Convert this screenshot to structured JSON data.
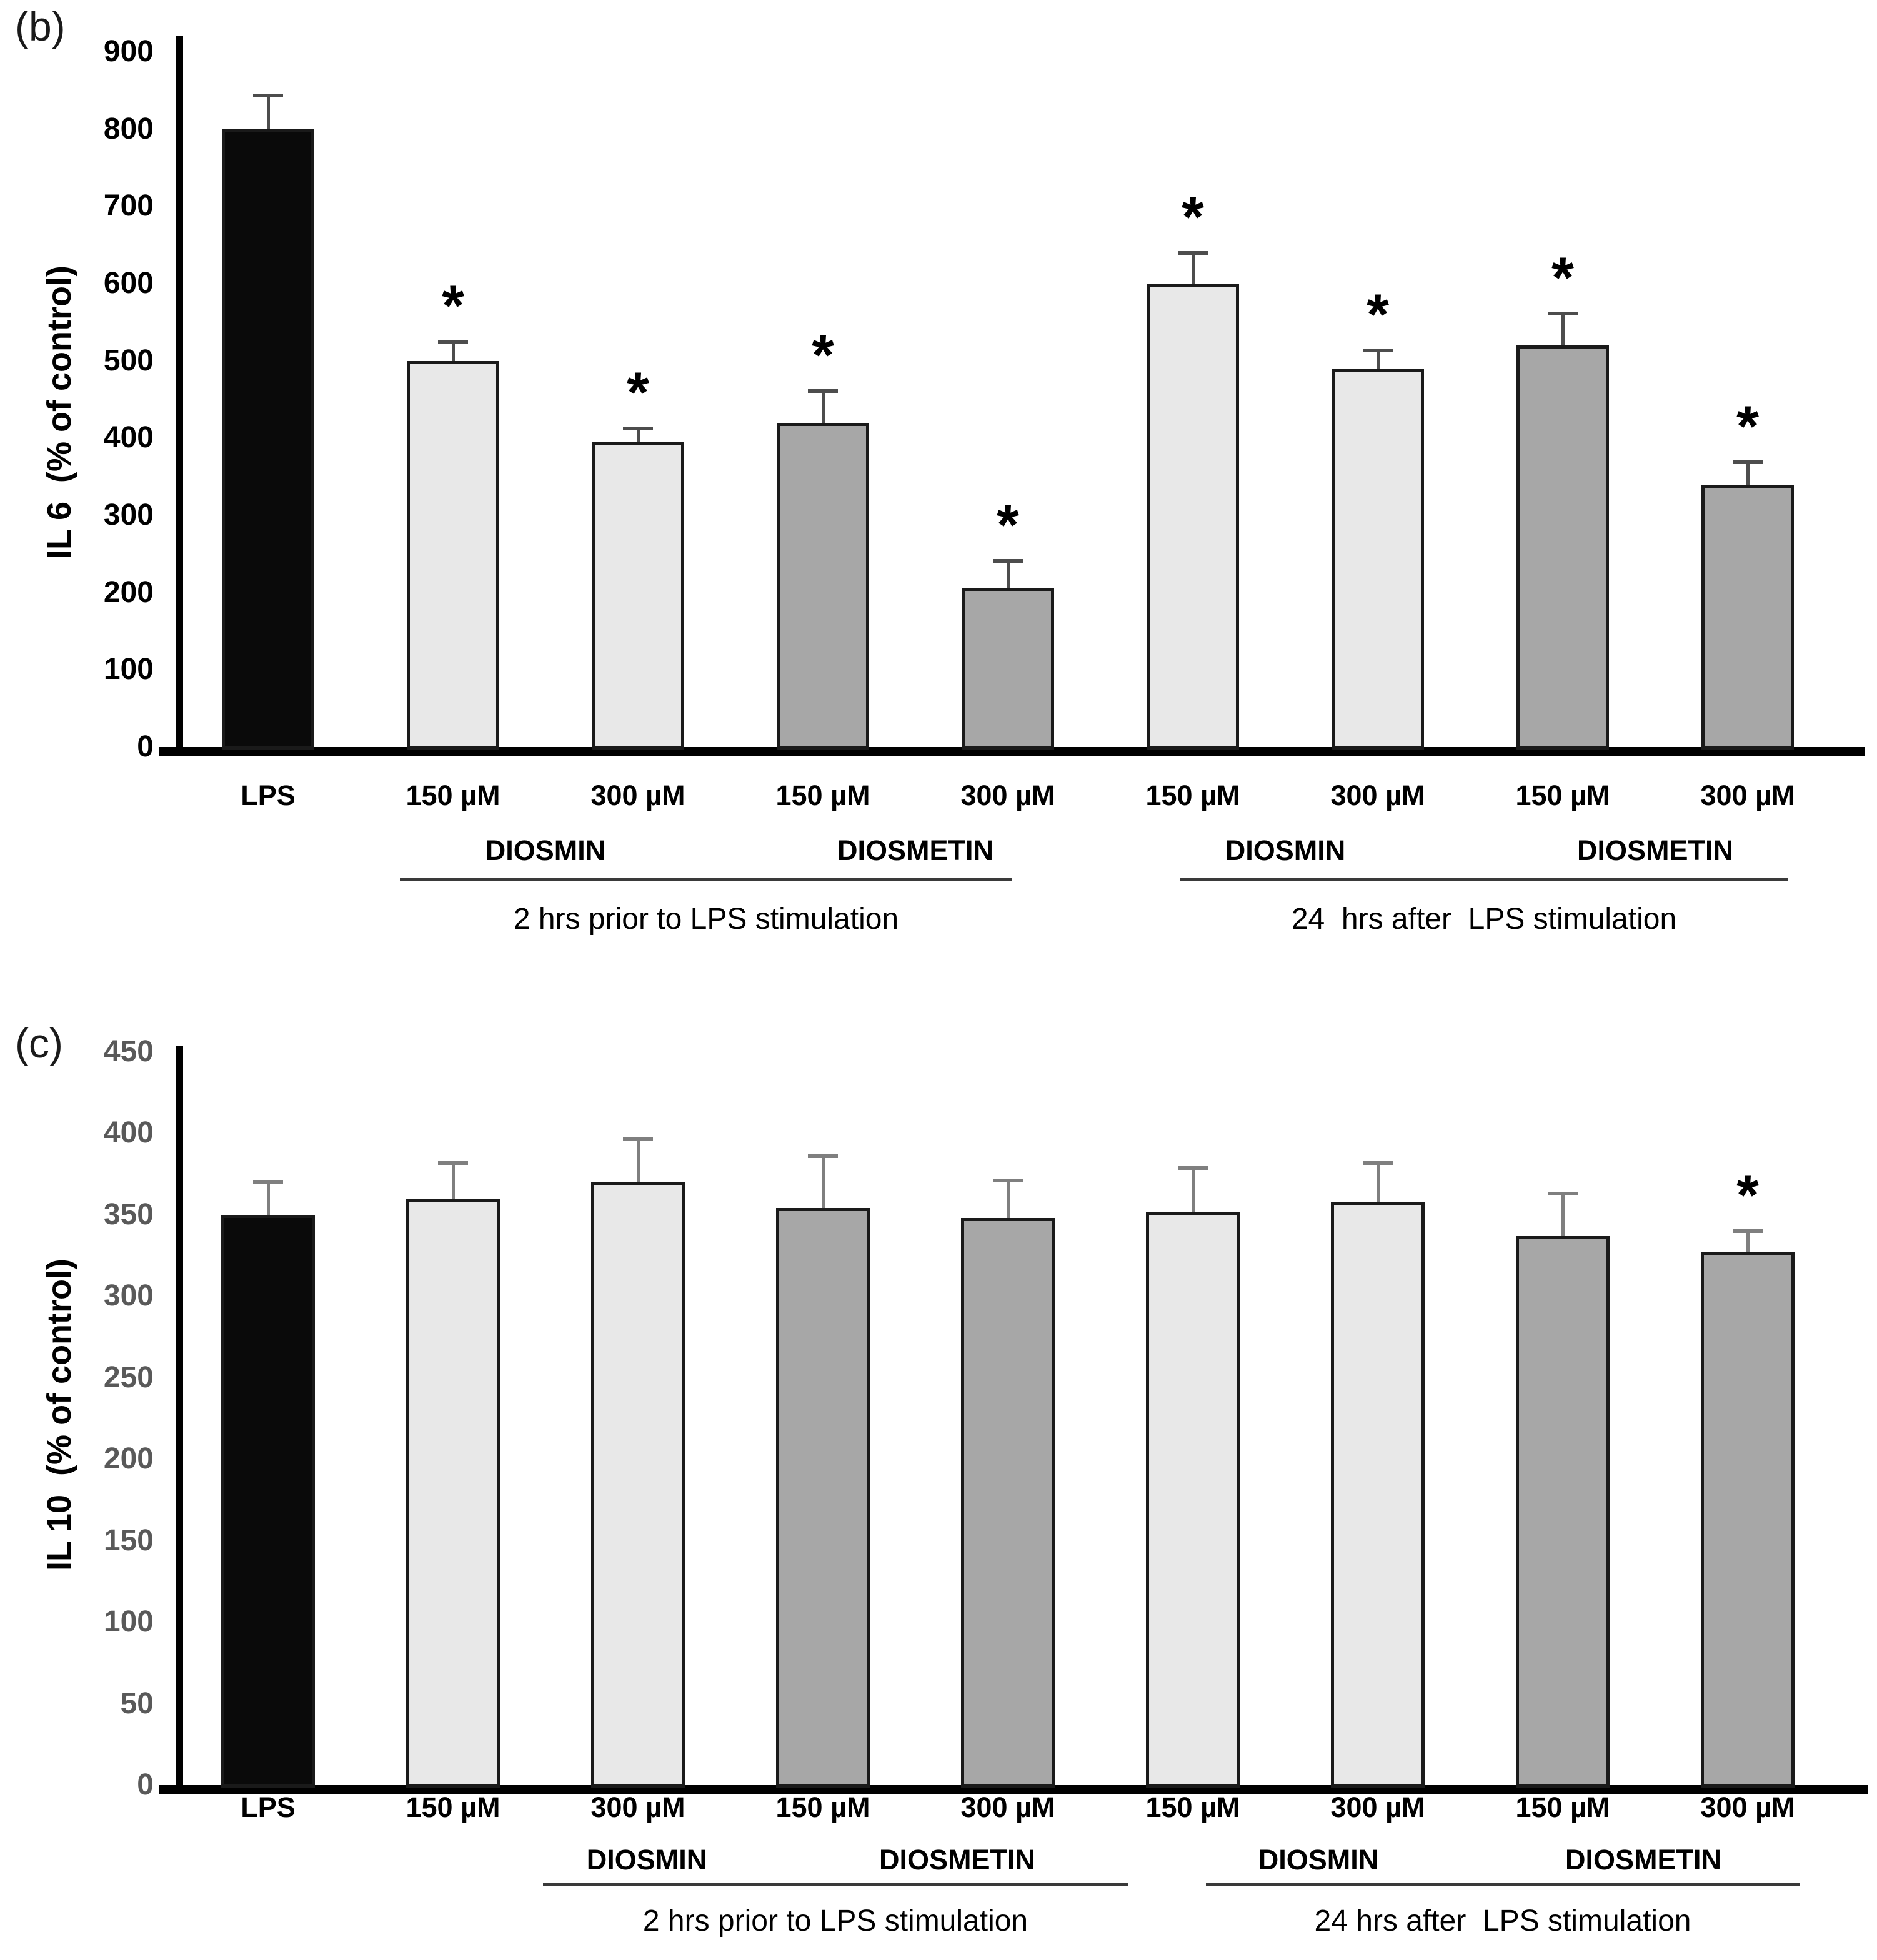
{
  "figure": {
    "colors": {
      "bar_light": "#e8e8e8",
      "bar_dark": "#a7a7a7",
      "bar_black": "#0a0a0a",
      "bar_border": "#1a1a1a",
      "axis": "#000000"
    },
    "significance_marker": "*",
    "panels": [
      {
        "panel_label": "(b)",
        "ylabel": "IL 6  (% of control)",
        "tick_color": "#000000",
        "error_color": "#4d4d4d",
        "chart_data": {
          "type": "bar",
          "title": "",
          "xlabel": "",
          "ylabel": "IL 6  (% of control)",
          "ylim": [
            0,
            900
          ],
          "ytick_step": 100,
          "grid": false,
          "legend": false,
          "categories": [
            "LPS",
            "150 µM",
            "300 µM",
            "150 µM",
            "300 µM",
            "150 µM",
            "300 µM",
            "150 µM",
            "300 µM"
          ],
          "values": [
            800,
            500,
            395,
            420,
            205,
            600,
            490,
            520,
            340
          ],
          "errors_plus": [
            46,
            27,
            20,
            43,
            38,
            42,
            26,
            44,
            31
          ],
          "significant": [
            false,
            true,
            true,
            true,
            true,
            true,
            true,
            true,
            true
          ],
          "bar_styles": [
            "black",
            "light",
            "light",
            "dark",
            "dark",
            "light",
            "light",
            "dark",
            "dark"
          ],
          "group_labels": [
            "DIOSMIN",
            "DIOSMETIN",
            "DIOSMIN",
            "DIOSMETIN"
          ],
          "footnotes": [
            "2 hrs prior to LPS stimulation",
            "24  hrs after  LPS stimulation"
          ]
        }
      },
      {
        "panel_label": "(c)",
        "ylabel": "IL 10  (% of control)",
        "tick_color": "#595959",
        "error_color": "#7f7f7f",
        "chart_data": {
          "type": "bar",
          "title": "",
          "xlabel": "",
          "ylabel": "IL 10  (% of control)",
          "ylim": [
            0,
            450
          ],
          "ytick_step": 50,
          "grid": false,
          "legend": false,
          "categories": [
            "LPS",
            "150 µM",
            "300 µM",
            "150 µM",
            "300 µM",
            "150 µM",
            "300 µM",
            "150 µM",
            "300 µM"
          ],
          "values": [
            350,
            360,
            370,
            354,
            348,
            352,
            358,
            337,
            327
          ],
          "errors_plus": [
            21,
            23,
            28,
            33,
            24,
            28,
            25,
            27,
            14
          ],
          "significant": [
            false,
            false,
            false,
            false,
            false,
            false,
            false,
            false,
            true
          ],
          "bar_styles": [
            "black",
            "light",
            "light",
            "dark",
            "dark",
            "light",
            "light",
            "dark",
            "dark"
          ],
          "group_labels": [
            "DIOSMIN",
            "DIOSMETIN",
            "DIOSMIN",
            "DIOSMETIN"
          ],
          "footnotes": [
            "2 hrs prior to LPS stimulation",
            "24 hrs after  LPS stimulation"
          ]
        }
      }
    ]
  }
}
